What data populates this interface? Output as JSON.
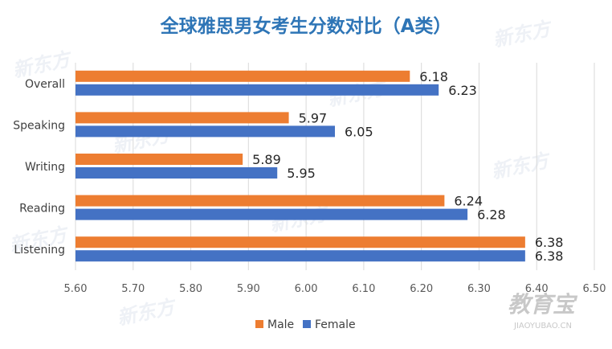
{
  "chart_data": {
    "type": "bar",
    "orientation": "horizontal",
    "title": "全球雅思男女考生分数对比（A类）",
    "categories": [
      "Overall",
      "Speaking",
      "Writing",
      "Reading",
      "Listening"
    ],
    "series": [
      {
        "name": "Male",
        "values": [
          6.18,
          5.97,
          5.89,
          6.24,
          6.38
        ],
        "color": "#ED7D31"
      },
      {
        "name": "Female",
        "values": [
          6.23,
          6.05,
          5.95,
          6.28,
          6.38
        ],
        "color": "#4472C4"
      }
    ],
    "value_labels": {
      "Male": [
        "6.18",
        "5.97",
        "5.89",
        "6.24",
        "6.38"
      ],
      "Female": [
        "6.23",
        "6.05",
        "5.95",
        "6.28",
        "6.38"
      ]
    },
    "xlim": [
      5.6,
      6.5
    ],
    "xticks": [
      "5.60",
      "5.70",
      "5.80",
      "5.90",
      "6.00",
      "6.10",
      "6.20",
      "6.30",
      "6.40",
      "6.50"
    ],
    "grid": true,
    "legend_position": "bottom",
    "title_color": "#2E75B6",
    "grid_color": "#D9D9D9"
  },
  "watermarks": {
    "brand_main": "教育宝",
    "brand_url": "JIAOYUBAO.CN",
    "brand_logo": "新东方"
  }
}
